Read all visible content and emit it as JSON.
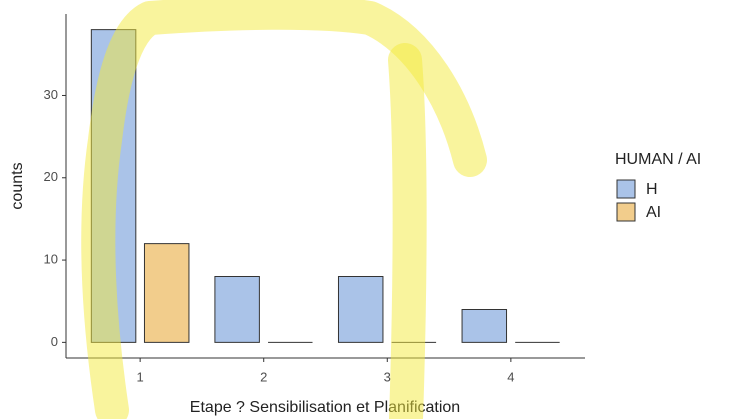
{
  "chart_data": {
    "type": "bar",
    "x_label": "Etape ? Sensibilisation et Planification",
    "y_label": "counts",
    "x": [
      1,
      2,
      3,
      4
    ],
    "xlim": [
      0.4,
      4.6
    ],
    "xticks": [
      1,
      2,
      3,
      4
    ],
    "ylim": [
      -1.9,
      39.9
    ],
    "yticks": [
      0,
      10,
      20,
      30
    ],
    "grid": false,
    "legend_title": "HUMAN / AI",
    "legend_position": "right",
    "series": [
      {
        "name": "H",
        "color": "#aac3e8",
        "values": [
          38,
          8,
          8,
          4
        ]
      },
      {
        "name": "AI",
        "color": "#f2cd8c",
        "values": [
          12,
          0,
          0,
          0
        ]
      }
    ]
  }
}
